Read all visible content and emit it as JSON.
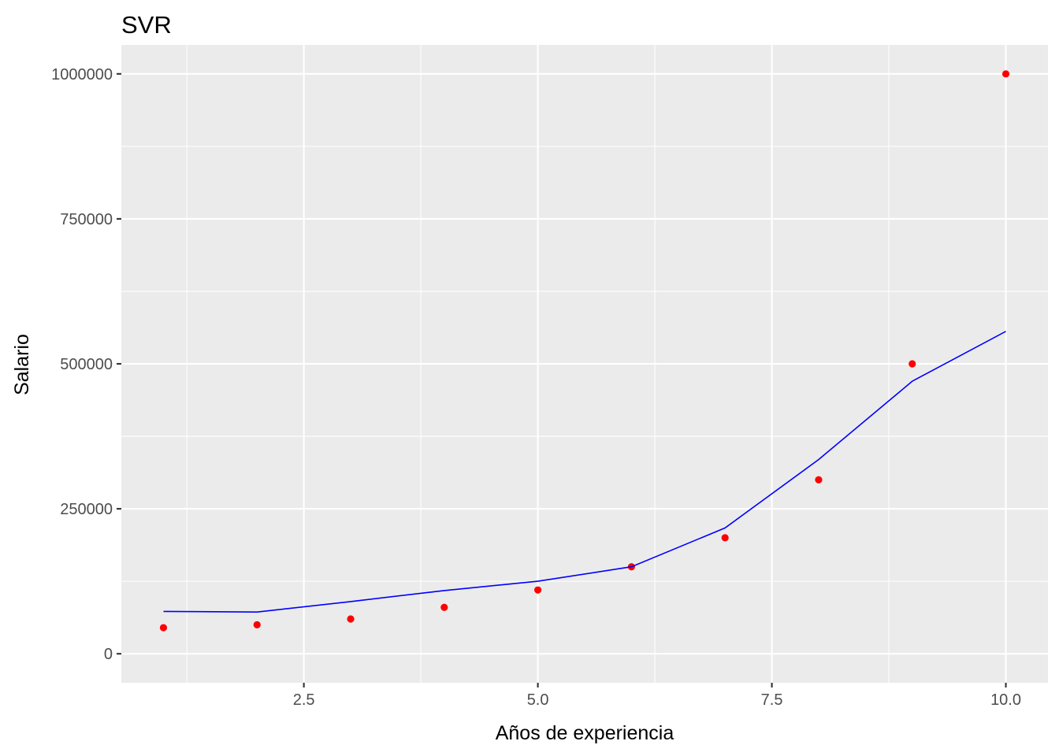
{
  "chart_data": {
    "type": "scatter",
    "title": "SVR",
    "xlabel": "Años de experiencia",
    "ylabel": "Salario",
    "xlim": [
      0.55,
      10.45
    ],
    "ylim": [
      -50000,
      1050000
    ],
    "x_ticks": [
      2.5,
      5.0,
      7.5,
      10.0
    ],
    "x_tick_labels": [
      "2.5",
      "5.0",
      "7.5",
      "10.0"
    ],
    "y_ticks": [
      0,
      250000,
      500000,
      750000,
      1000000
    ],
    "y_tick_labels": [
      "0",
      "250000",
      "500000",
      "750000",
      "1000000"
    ],
    "grid": true,
    "background": "#ebebeb",
    "series": [
      {
        "kind": "points",
        "color": "#ff0000",
        "x": [
          1,
          2,
          3,
          4,
          5,
          6,
          7,
          8,
          9,
          10
        ],
        "y": [
          45000,
          50000,
          60000,
          80000,
          110000,
          150000,
          200000,
          300000,
          500000,
          1000000
        ]
      },
      {
        "kind": "line",
        "color": "#0000ff",
        "x": [
          1,
          2,
          3,
          4,
          5,
          6,
          7,
          8,
          9,
          10
        ],
        "y": [
          73000,
          72000,
          90000,
          109000,
          125000,
          150000,
          217000,
          335000,
          470000,
          556000
        ]
      }
    ]
  }
}
